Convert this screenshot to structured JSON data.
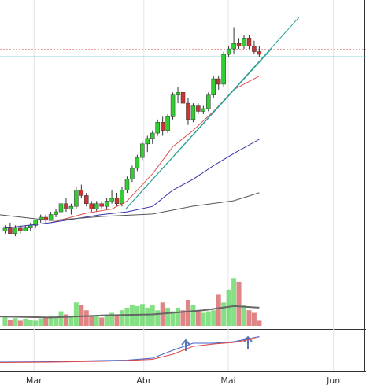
{
  "chart_data": {
    "type": "candlestick",
    "xlim": [
      0,
      72
    ],
    "xticks": [
      {
        "value": 6.7,
        "label": "Mar"
      },
      {
        "value": 28.3,
        "label": "Abr"
      },
      {
        "value": 44.9,
        "label": "Mai"
      },
      {
        "value": 65.6,
        "label": "Jun"
      }
    ],
    "ylim": [
      0,
      100
    ],
    "up_color": "#33cc33",
    "down_color": "#cc3333",
    "x": [
      1,
      2,
      3,
      4,
      5,
      6,
      7,
      8,
      9,
      10,
      11,
      12,
      13,
      14,
      15,
      16,
      17,
      18,
      19,
      20,
      21,
      22,
      23,
      24,
      25,
      26,
      27,
      28,
      29,
      30,
      31,
      32,
      33,
      34,
      35,
      36,
      37,
      38,
      39,
      40,
      41,
      42,
      43,
      44,
      45,
      46,
      47,
      48,
      49,
      50,
      51
    ],
    "open": [
      15,
      16,
      14,
      16,
      15,
      16,
      17,
      19,
      20,
      19,
      21,
      22,
      25,
      23,
      24,
      30,
      28,
      25,
      23,
      25,
      24,
      26,
      27,
      25,
      30,
      34,
      38,
      42,
      47,
      49,
      51,
      55,
      52,
      57,
      65,
      66,
      62,
      56,
      61,
      59,
      60,
      65,
      71,
      69,
      80,
      82,
      84,
      83,
      86,
      83,
      81
    ],
    "high": [
      17,
      18,
      17,
      17,
      17,
      18,
      19,
      21,
      21,
      22,
      23,
      26,
      27,
      25,
      31,
      32,
      29,
      26,
      26,
      26,
      27,
      30,
      29,
      31,
      35,
      39,
      43,
      48,
      50,
      52,
      56,
      57,
      58,
      66,
      68,
      67,
      64,
      62,
      62,
      61,
      66,
      72,
      72,
      81,
      83,
      90,
      86,
      87,
      87,
      85,
      83
    ],
    "low": [
      14,
      14,
      13,
      14,
      15,
      15,
      16,
      18,
      18,
      19,
      20,
      21,
      22,
      21,
      23,
      27,
      24,
      22,
      22,
      23,
      23,
      25,
      24,
      24,
      29,
      33,
      37,
      41,
      44,
      47,
      50,
      50,
      51,
      56,
      62,
      61,
      54,
      55,
      58,
      58,
      59,
      64,
      67,
      68,
      79,
      80,
      82,
      82,
      82,
      80,
      79
    ],
    "close": [
      16,
      14,
      16,
      15,
      16,
      17,
      19,
      20,
      19,
      21,
      22,
      25,
      23,
      24,
      30,
      28,
      25,
      23,
      25,
      24,
      26,
      27,
      25,
      30,
      34,
      38,
      42,
      47,
      49,
      51,
      55,
      52,
      57,
      65,
      66,
      62,
      56,
      61,
      59,
      60,
      65,
      71,
      69,
      80,
      82,
      84,
      83,
      86,
      83,
      81,
      80
    ],
    "lines": [
      {
        "color": "#e05050",
        "x": [
          10,
          17,
          22,
          25,
          30,
          34,
          38,
          42,
          46,
          51
        ],
        "values": [
          18,
          21.5,
          23,
          26,
          36,
          46,
          52,
          59,
          67,
          72
        ]
      },
      {
        "color": "#3333aa",
        "x": [
          1,
          10,
          20,
          25,
          30,
          34,
          38,
          42,
          46,
          51
        ],
        "values": [
          16,
          18,
          21,
          22,
          24,
          30,
          34,
          39,
          43.5,
          48.7
        ]
      },
      {
        "color": "#555555",
        "x": [
          0,
          10,
          20,
          30,
          38,
          46,
          51
        ],
        "values": [
          20.9,
          18.8,
          20.3,
          21.2,
          24.1,
          26.1,
          29
        ]
      },
      {
        "color": "#2aa198",
        "x": [
          24.8,
          58.8
        ],
        "values": [
          23.2,
          93.6
        ]
      },
      {
        "color": "#2aa198",
        "x": [
          24.8,
          53.4
        ],
        "values": [
          23.2,
          82
        ]
      }
    ],
    "hlines": [
      {
        "value": 81.7,
        "color": "#cc0000",
        "dash": true
      },
      {
        "value": 79.1,
        "color": "#66cccc",
        "dash": false
      }
    ],
    "volume": {
      "ylim": [
        0,
        100
      ],
      "values": [
        18,
        12,
        15,
        10,
        14,
        12,
        10,
        14,
        16,
        20,
        15,
        28,
        22,
        18,
        45,
        40,
        30,
        20,
        18,
        16,
        22,
        25,
        20,
        30,
        35,
        40,
        38,
        42,
        35,
        40,
        30,
        45,
        35,
        28,
        35,
        30,
        50,
        40,
        30,
        25,
        28,
        30,
        60,
        45,
        70,
        92,
        85,
        40,
        30,
        25,
        10
      ],
      "ma": {
        "color": "#666666",
        "x": [
          0,
          10,
          20,
          30,
          40,
          46,
          51
        ],
        "values": [
          18,
          16,
          20,
          22,
          30,
          38,
          35
        ]
      }
    },
    "indicator": {
      "ylim": [
        0,
        100
      ],
      "lines": [
        {
          "color": "#4466cc",
          "x": [
            0,
            10,
            20,
            25,
            30,
            34,
            38,
            42,
            46,
            51
          ],
          "values": [
            20,
            21,
            24,
            25,
            30,
            50,
            68,
            68,
            72,
            85
          ]
        },
        {
          "color": "#dd4444",
          "x": [
            0,
            10,
            20,
            25,
            30,
            34,
            38,
            42,
            46,
            51
          ],
          "values": [
            19,
            20,
            22,
            24,
            27,
            40,
            60,
            66,
            70,
            82
          ]
        }
      ]
    }
  }
}
